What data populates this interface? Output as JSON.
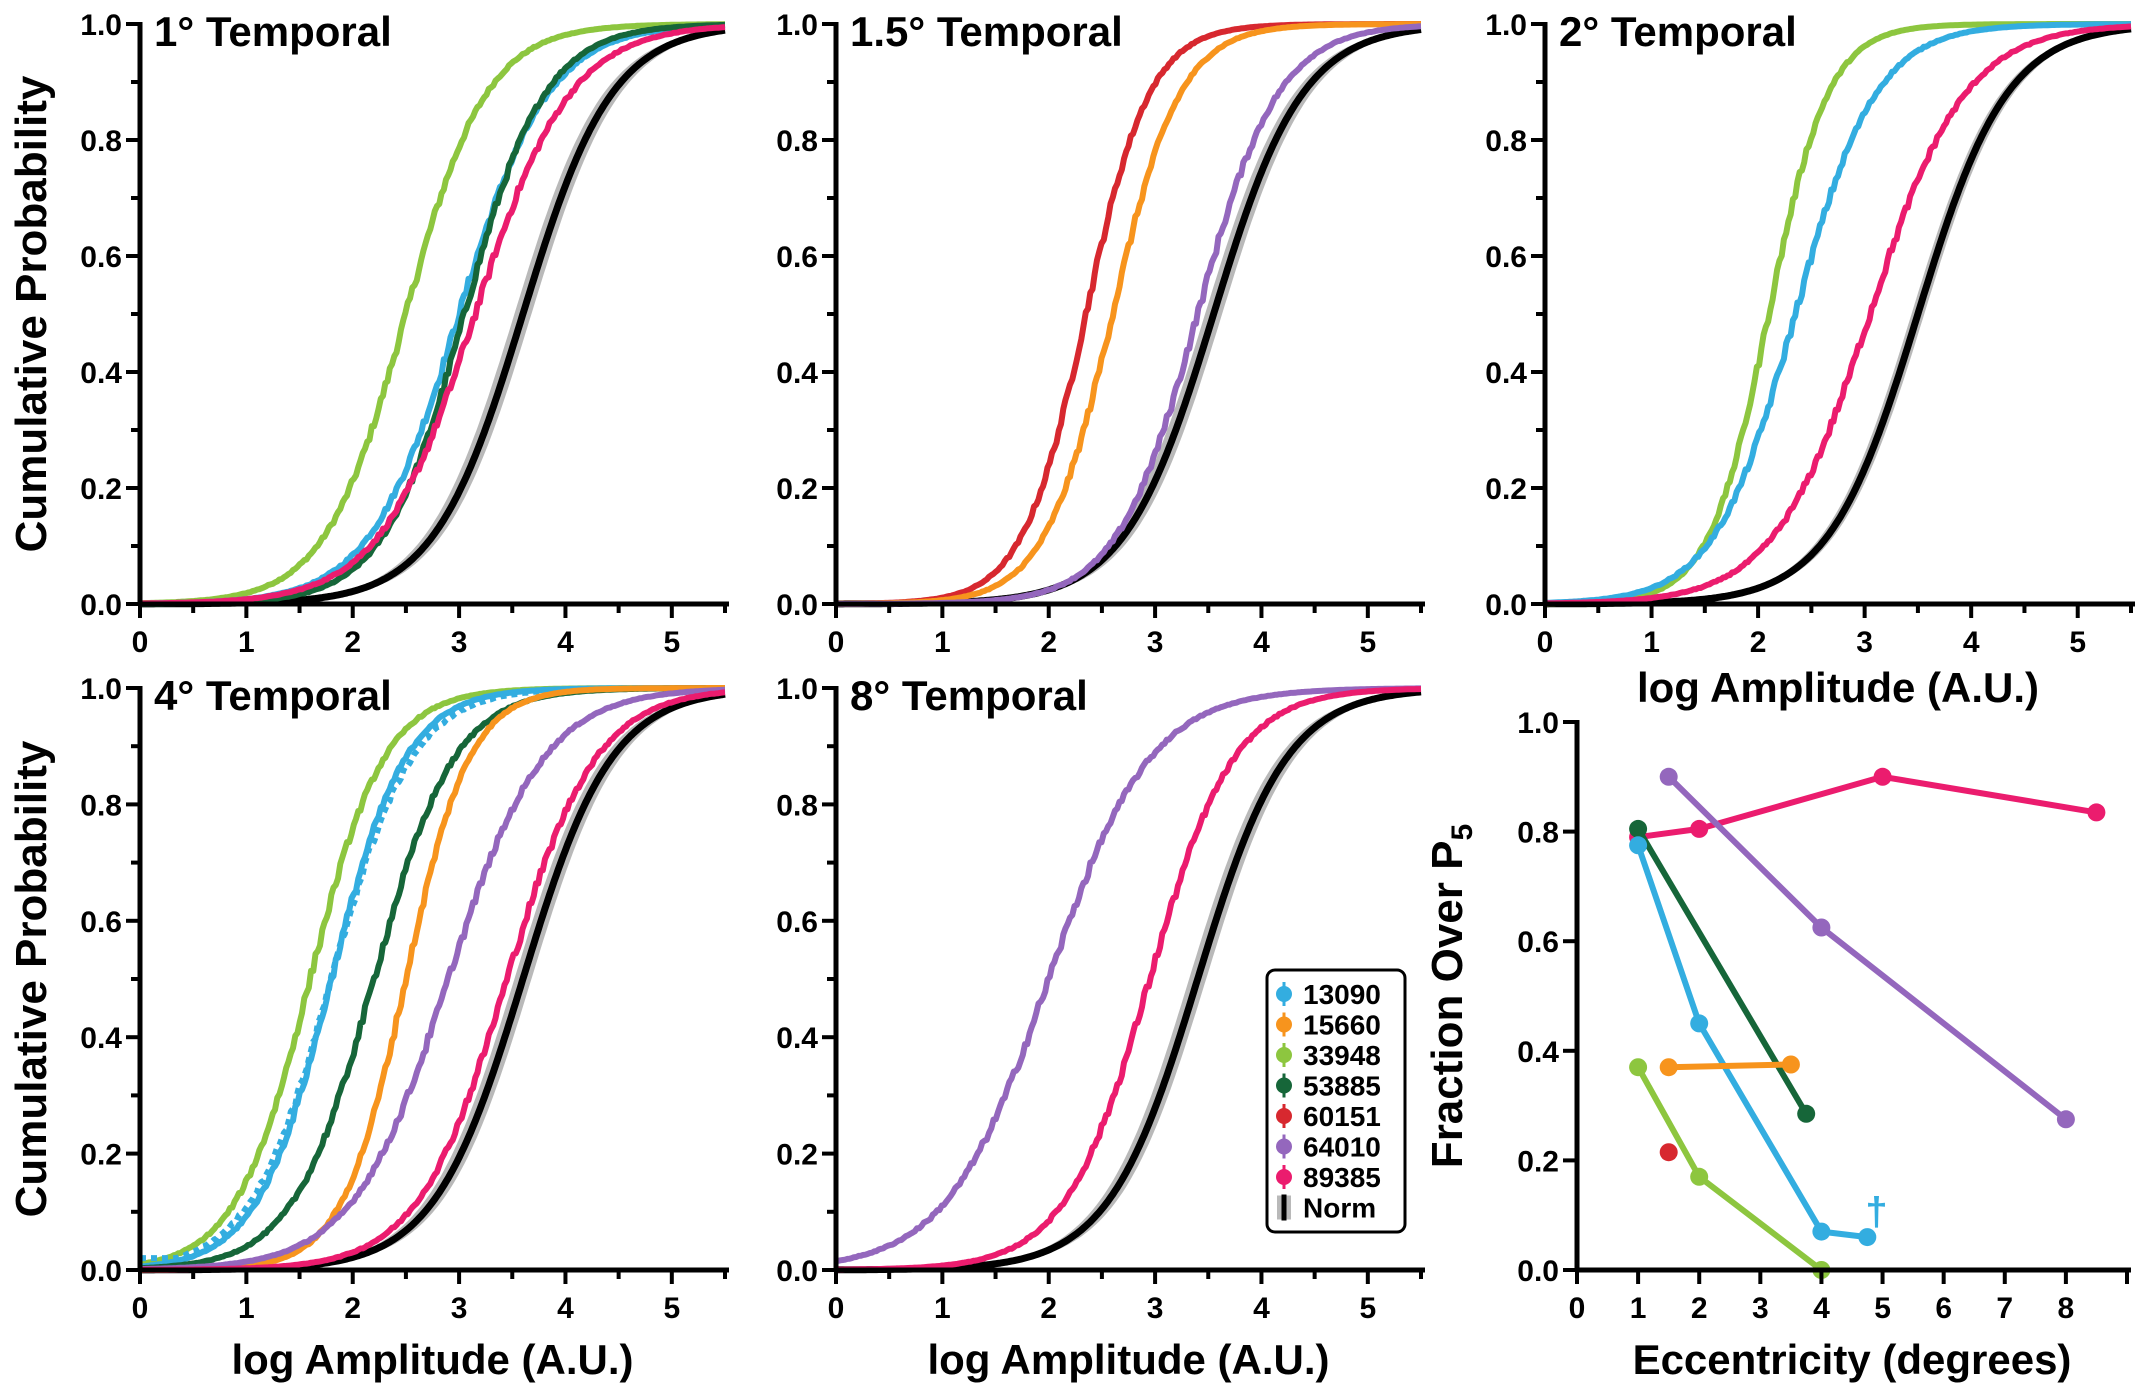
{
  "legend": {
    "entries": [
      {
        "id": "13090",
        "color": "#33ade0"
      },
      {
        "id": "15660",
        "color": "#f7941d"
      },
      {
        "id": "33948",
        "color": "#8dc63f"
      },
      {
        "id": "53885",
        "color": "#166639"
      },
      {
        "id": "60151",
        "color": "#d7282f"
      },
      {
        "id": "64010",
        "color": "#9467bd"
      },
      {
        "id": "89385",
        "color": "#eb1c6e"
      },
      {
        "id": "Norm",
        "color": "#000000"
      }
    ]
  },
  "chart_data": [
    {
      "type": "line",
      "title": "1° Temporal",
      "xlabel": "",
      "ylabel": "Cumulative Probability",
      "xlim": [
        0,
        5.5
      ],
      "ylim": [
        0,
        1
      ],
      "xticks": [
        "0",
        "1",
        "2",
        "3",
        "4",
        "5"
      ],
      "yticks": [
        "0.0",
        "0.2",
        "0.4",
        "0.6",
        "0.8",
        "1.0"
      ],
      "norm": {
        "median": 3.6,
        "spread": 0.42,
        "band": 0.08
      },
      "series": [
        {
          "name": "33948",
          "median": 2.5,
          "spread": 0.38
        },
        {
          "name": "13090",
          "median": 3.0,
          "spread": 0.42
        },
        {
          "name": "53885",
          "median": 3.05,
          "spread": 0.38
        },
        {
          "name": "89385",
          "median": 3.15,
          "spread": 0.45
        }
      ]
    },
    {
      "type": "line",
      "title": "1.5° Temporal",
      "xlabel": "",
      "ylabel": "",
      "xlim": [
        0,
        5.5
      ],
      "ylim": [
        0,
        1
      ],
      "xticks": [
        "0",
        "1",
        "2",
        "3",
        "4",
        "5"
      ],
      "yticks": [
        "0.0",
        "0.2",
        "0.4",
        "0.6",
        "0.8",
        "1.0"
      ],
      "norm": {
        "median": 3.55,
        "spread": 0.42,
        "band": 0.08
      },
      "series": [
        {
          "name": "60151",
          "median": 2.35,
          "spread": 0.3
        },
        {
          "name": "15660",
          "median": 2.6,
          "spread": 0.32
        },
        {
          "name": "64010",
          "median": 3.4,
          "spread": 0.38
        }
      ]
    },
    {
      "type": "line",
      "title": "2° Temporal",
      "xlabel": "log Amplitude (A.U.)",
      "ylabel": "",
      "xlim": [
        0,
        5.5
      ],
      "ylim": [
        0,
        1
      ],
      "xticks": [
        "0",
        "1",
        "2",
        "3",
        "4",
        "5"
      ],
      "yticks": [
        "0.0",
        "0.2",
        "0.4",
        "0.6",
        "0.8",
        "1.0"
      ],
      "norm": {
        "median": 3.5,
        "spread": 0.42,
        "band": 0.06
      },
      "series": [
        {
          "name": "33948",
          "median": 2.1,
          "spread": 0.28
        },
        {
          "name": "13090",
          "median": 2.35,
          "spread": 0.38
        },
        {
          "name": "89385",
          "median": 3.05,
          "spread": 0.45
        }
      ]
    },
    {
      "type": "line",
      "title": "4° Temporal",
      "xlabel": "log Amplitude (A.U.)",
      "ylabel": "Cumulative Probability",
      "xlim": [
        0,
        5.5
      ],
      "ylim": [
        0,
        1
      ],
      "xticks": [
        "0",
        "1",
        "2",
        "3",
        "4",
        "5"
      ],
      "yticks": [
        "0.0",
        "0.2",
        "0.4",
        "0.6",
        "0.8",
        "1.0"
      ],
      "norm": {
        "median": 3.6,
        "spread": 0.42,
        "band": 0.08
      },
      "series": [
        {
          "name": "33948",
          "median": 1.6,
          "spread": 0.35
        },
        {
          "name": "13090",
          "median": 1.8,
          "spread": 0.35
        },
        {
          "name": "13090 (dotted)",
          "median": 1.8,
          "spread": 0.38,
          "dashed": true,
          "floor": 0.02
        },
        {
          "name": "53885",
          "median": 2.2,
          "spread": 0.38
        },
        {
          "name": "15660",
          "median": 2.5,
          "spread": 0.3
        },
        {
          "name": "64010",
          "median": 2.9,
          "spread": 0.45
        },
        {
          "name": "89385",
          "median": 3.45,
          "spread": 0.42
        }
      ]
    },
    {
      "type": "line",
      "title": "8° Temporal",
      "xlabel": "log Amplitude (A.U.)",
      "ylabel": "",
      "xlim": [
        0,
        5.5
      ],
      "ylim": [
        0,
        1
      ],
      "xticks": [
        "0",
        "1",
        "2",
        "3",
        "4",
        "5"
      ],
      "yticks": [
        "0.0",
        "0.2",
        "0.4",
        "0.6",
        "0.8",
        "1.0"
      ],
      "norm": {
        "median": 3.4,
        "spread": 0.42,
        "band": 0.08
      },
      "series": [
        {
          "name": "64010",
          "median": 2.0,
          "spread": 0.48
        },
        {
          "name": "89385",
          "median": 2.95,
          "spread": 0.4
        }
      ]
    },
    {
      "type": "line",
      "title": "",
      "xlabel": "Eccentricity (degrees)",
      "ylabel": "Fraction Over P",
      "ylabel_sub": "5",
      "xlim": [
        0,
        9
      ],
      "ylim": [
        0,
        1
      ],
      "xticks": [
        "0",
        "1",
        "2",
        "3",
        "4",
        "5",
        "6",
        "7",
        "8"
      ],
      "yticks": [
        "0.0",
        "0.2",
        "0.4",
        "0.6",
        "0.8",
        "1.0"
      ],
      "annotation": {
        "text": "†",
        "x": 4.9,
        "y": 0.1,
        "color": "#33ade0"
      },
      "series": [
        {
          "name": "89385",
          "x": [
            1,
            2,
            5,
            8.5
          ],
          "y": [
            0.79,
            0.805,
            0.9,
            0.835
          ]
        },
        {
          "name": "64010",
          "x": [
            1.5,
            4,
            8
          ],
          "y": [
            0.9,
            0.625,
            0.275
          ]
        },
        {
          "name": "53885",
          "x": [
            1,
            3.75
          ],
          "y": [
            0.805,
            0.285
          ]
        },
        {
          "name": "13090",
          "x": [
            1,
            2,
            4,
            4.75
          ],
          "y": [
            0.775,
            0.45,
            0.07,
            0.06
          ]
        },
        {
          "name": "15660",
          "x": [
            1.5,
            3.5
          ],
          "y": [
            0.37,
            0.375
          ]
        },
        {
          "name": "33948",
          "x": [
            1,
            2,
            4
          ],
          "y": [
            0.37,
            0.17,
            0.0
          ]
        },
        {
          "name": "60151",
          "x": [
            1.5
          ],
          "y": [
            0.215
          ]
        }
      ]
    }
  ]
}
